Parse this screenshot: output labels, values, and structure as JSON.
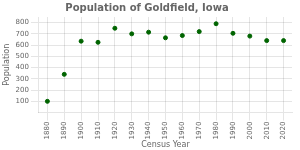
{
  "chart_data": {
    "type": "scatter",
    "title": "Population of Goldfield, Iowa",
    "xlabel": "Census Year",
    "ylabel": "Population",
    "x": [
      1880,
      1890,
      1900,
      1910,
      1920,
      1930,
      1940,
      1950,
      1960,
      1970,
      1980,
      1990,
      2000,
      2010,
      2020
    ],
    "values": [
      100,
      340,
      635,
      625,
      750,
      700,
      715,
      665,
      685,
      720,
      790,
      705,
      680,
      640,
      640
    ],
    "color": "#006400",
    "xlim": [
      1875,
      2025
    ],
    "xticks": [
      1880,
      1890,
      1900,
      1910,
      1920,
      1930,
      1940,
      1950,
      1960,
      1970,
      1980,
      1990,
      2000,
      2010,
      2020
    ],
    "ylim": [
      0,
      850
    ],
    "yticks": [
      100,
      200,
      300,
      400,
      500,
      600,
      700,
      800
    ],
    "grid": true
  }
}
